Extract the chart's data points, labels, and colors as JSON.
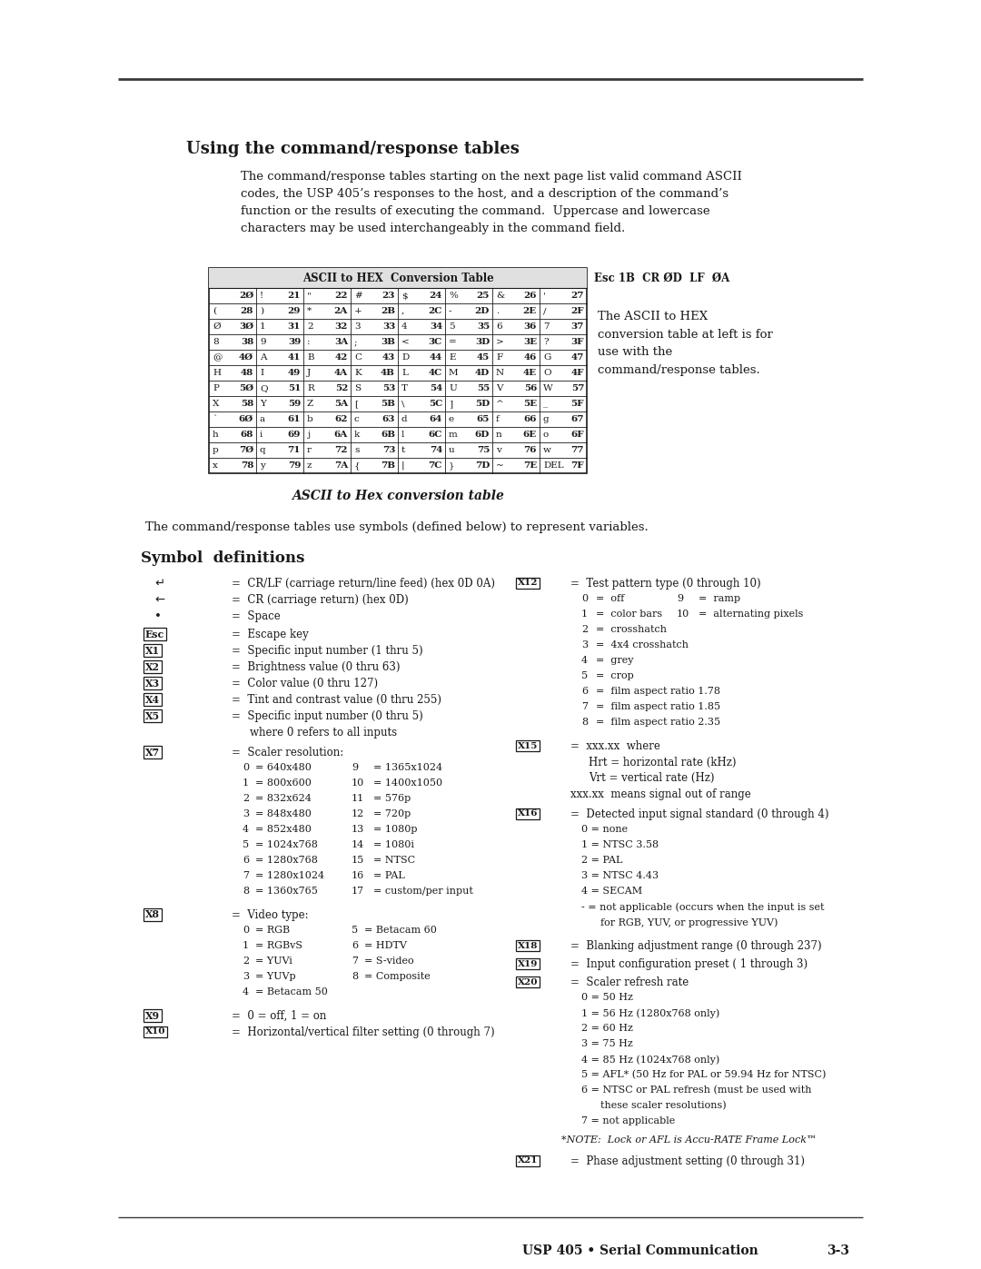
{
  "page_title": "Using the command/response tables",
  "page_subtitle": "The command/response tables starting on the next page list valid command ASCII\ncodes, the USP 405’s responses to the host, and a description of the command’s\nfunction or the results of executing the command.  Uppercase and lowercase\ncharacters may be used interchangeably in the command field.",
  "ascii_table_title": "ASCII to HEX  Conversion Table",
  "ascii_table_rows": [
    [
      " ",
      "2Ø",
      "!",
      "21",
      "\"",
      "22",
      "#",
      "23",
      "$",
      "24",
      "%",
      "25",
      "&",
      "26",
      "'",
      "27"
    ],
    [
      "(",
      "28",
      ")",
      "29",
      "*",
      "2A",
      "+",
      "2B",
      ",",
      "2C",
      "-",
      "2D",
      ".",
      "2E",
      "/",
      "2F"
    ],
    [
      "Ø",
      "3Ø",
      "1",
      "31",
      "2",
      "32",
      "3",
      "33",
      "4",
      "34",
      "5",
      "35",
      "6",
      "36",
      "7",
      "37"
    ],
    [
      "8",
      "38",
      "9",
      "39",
      ":",
      "3A",
      ";",
      "3B",
      "<",
      "3C",
      "=",
      "3D",
      ">",
      "3E",
      "?",
      "3F"
    ],
    [
      "@",
      "4Ø",
      "A",
      "41",
      "B",
      "42",
      "C",
      "43",
      "D",
      "44",
      "E",
      "45",
      "F",
      "46",
      "G",
      "47"
    ],
    [
      "H",
      "48",
      "I",
      "49",
      "J",
      "4A",
      "K",
      "4B",
      "L",
      "4C",
      "M",
      "4D",
      "N",
      "4E",
      "O",
      "4F"
    ],
    [
      "P",
      "5Ø",
      "Q",
      "51",
      "R",
      "52",
      "S",
      "53",
      "T",
      "54",
      "U",
      "55",
      "V",
      "56",
      "W",
      "57"
    ],
    [
      "X",
      "58",
      "Y",
      "59",
      "Z",
      "5A",
      "[",
      "5B",
      "\\",
      "5C",
      "]",
      "5D",
      "^",
      "5E",
      "_",
      "5F"
    ],
    [
      "`",
      "6Ø",
      "a",
      "61",
      "b",
      "62",
      "c",
      "63",
      "d",
      "64",
      "e",
      "65",
      "f",
      "66",
      "g",
      "67"
    ],
    [
      "h",
      "68",
      "i",
      "69",
      "j",
      "6A",
      "k",
      "6B",
      "l",
      "6C",
      "m",
      "6D",
      "n",
      "6E",
      "o",
      "6F"
    ],
    [
      "p",
      "7Ø",
      "q",
      "71",
      "r",
      "72",
      "s",
      "73",
      "t",
      "74",
      "u",
      "75",
      "v",
      "76",
      "w",
      "77"
    ],
    [
      "x",
      "78",
      "y",
      "79",
      "z",
      "7A",
      "{",
      "7B",
      "|",
      "7C",
      "}",
      "7D",
      "~",
      "7E",
      "DEL",
      "7F"
    ]
  ],
  "ascii_side_note": "The ASCII to HEX\nconversion table at left is for\nuse with the\ncommand/response tables.",
  "ascii_caption": "ASCII to Hex conversion table",
  "command_response_note": "The command/response tables use symbols (defined below) to represent variables.",
  "symbol_def_title": "Symbol  definitions",
  "footer_left": "USP 405 • Serial Communication",
  "footer_right": "3-3",
  "line_color": "#3a3a3a",
  "text_color": "#1a1a1a",
  "bg_color": "#ffffff"
}
